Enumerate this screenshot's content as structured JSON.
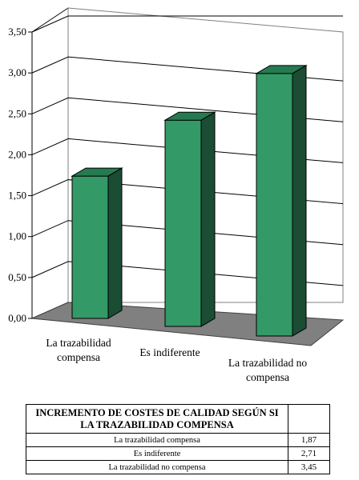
{
  "chart_data": {
    "type": "bar",
    "title": "",
    "xlabel": "",
    "ylabel": "",
    "categories": [
      [
        "La trazabilidad",
        "compensa"
      ],
      [
        "Es indiferente"
      ],
      [
        "La trazabilidad no",
        "compensa"
      ]
    ],
    "values": [
      1.87,
      2.71,
      3.45
    ],
    "ylim": [
      0,
      3.5
    ],
    "yticks": [
      "0,00",
      "0,50",
      "1,00",
      "1,50",
      "2,00",
      "2,50",
      "3,00",
      "3,50"
    ],
    "grid": true,
    "colors": {
      "bar_front": "#339966",
      "bar_side": "#1a4d33",
      "bar_top": "#267a50",
      "floor": "#808080"
    }
  },
  "table": {
    "title": "INCREMENTO DE COSTES DE CALIDAD SEGÚN SI LA TRAZABILIDAD COMPENSA",
    "rows": [
      {
        "label": "La trazabilidad compensa",
        "value": "1,87"
      },
      {
        "label": "Es indiferente",
        "value": "2,71"
      },
      {
        "label": "La trazabilidad no compensa",
        "value": "3,45"
      }
    ]
  }
}
